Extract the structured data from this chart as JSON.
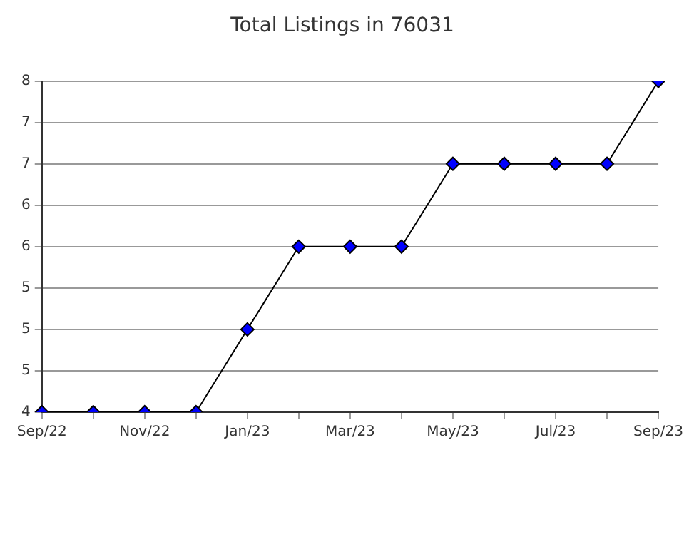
{
  "chart_data": {
    "type": "line",
    "title": "Total Listings in 76031",
    "categories": [
      "Sep/22",
      null,
      "Nov/22",
      null,
      "Jan/23",
      null,
      "Mar/23",
      null,
      "May/23",
      null,
      "Jul/23",
      null,
      "Sep/23"
    ],
    "series": [
      {
        "color": "#0000ff",
        "values": [
          4,
          4,
          4,
          4,
          5,
          6,
          6,
          6,
          7,
          7,
          7,
          7,
          8
        ]
      }
    ],
    "ylim": [
      4,
      8
    ],
    "yticks": [
      4,
      {
        "value": 4.5,
        "label": "5"
      },
      5,
      {
        "value": 5.5,
        "label": "5"
      },
      6,
      {
        "value": 6.5,
        "label": "6"
      },
      7,
      {
        "value": 7.5,
        "label": "7"
      },
      8
    ],
    "grid": "y",
    "legend": false,
    "marker": "diamond",
    "line_style": "solid"
  }
}
